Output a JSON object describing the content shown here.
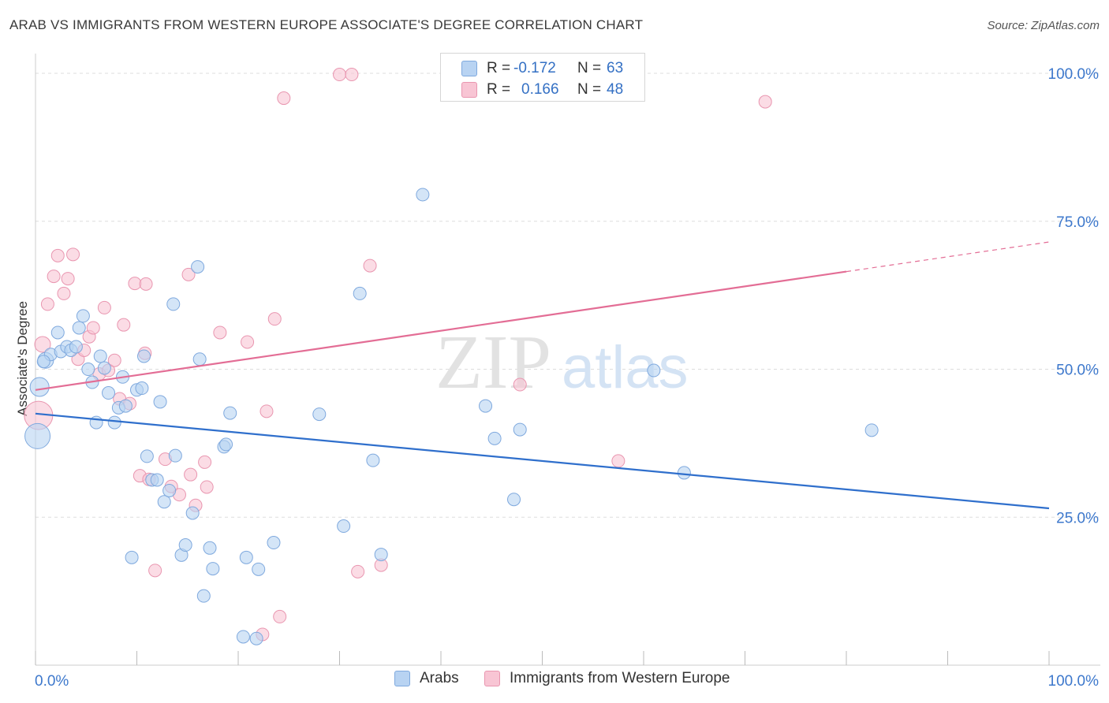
{
  "title": "ARAB VS IMMIGRANTS FROM WESTERN EUROPE ASSOCIATE'S DEGREE CORRELATION CHART",
  "source": "Source: ZipAtlas.com",
  "watermark": {
    "zip": "ZIP",
    "atlas": "atlas"
  },
  "stats": {
    "r_label": "R =",
    "n_label": "N =",
    "rows": [
      {
        "r": "-0.172",
        "n": "63"
      },
      {
        "r": "0.166",
        "n": "48"
      }
    ]
  },
  "legend": [
    "Arabs",
    "Immigrants from Western Europe"
  ],
  "colors": {
    "arabs_fill": "#b8d3f2",
    "arabs_stroke": "#7fa9de",
    "arabs_line": "#2f6fcc",
    "immig_fill": "#f8c5d4",
    "immig_stroke": "#e996b0",
    "immig_line": "#e36d95",
    "tick_label": "#3d78cc",
    "grid": "#dddddd"
  },
  "chart_data": {
    "type": "scatter",
    "title": "ARAB VS IMMIGRANTS FROM WESTERN EUROPE ASSOCIATE'S DEGREE CORRELATION CHART",
    "xlabel": "",
    "ylabel": "Associate's Degree",
    "xlim": [
      0,
      100
    ],
    "ylim": [
      0,
      102
    ],
    "x_tick_labels": [
      "0.0%",
      "100.0%"
    ],
    "y_ticks": [
      25,
      50,
      75,
      100
    ],
    "y_tick_labels": [
      "25.0%",
      "50.0%",
      "75.0%",
      "100.0%"
    ],
    "grid": true,
    "legend_position": "bottom",
    "series": [
      {
        "name": "Arabs",
        "r": -0.172,
        "n": 63,
        "trend": {
          "x": [
            0,
            100
          ],
          "y": [
            42.5,
            26.5
          ],
          "solid_to": 100
        },
        "points": [
          [
            0.2,
            38.7,
            16
          ],
          [
            0.4,
            47.0,
            12
          ],
          [
            1.0,
            51.5,
            10
          ],
          [
            1.5,
            52.5,
            8
          ],
          [
            2.2,
            56.2,
            8
          ],
          [
            2.5,
            53.0,
            8
          ],
          [
            3.1,
            53.8,
            8
          ],
          [
            3.5,
            53.2,
            8
          ],
          [
            4.0,
            53.8,
            8
          ],
          [
            4.3,
            57.0,
            8
          ],
          [
            4.7,
            59.0,
            8
          ],
          [
            5.2,
            50.0,
            8
          ],
          [
            5.6,
            47.8,
            8
          ],
          [
            6.0,
            41.0,
            8
          ],
          [
            6.4,
            52.2,
            8
          ],
          [
            6.8,
            50.2,
            8
          ],
          [
            7.2,
            46.0,
            8
          ],
          [
            7.8,
            41.0,
            8
          ],
          [
            8.2,
            43.5,
            8
          ],
          [
            8.6,
            48.7,
            8
          ],
          [
            8.9,
            43.8,
            8
          ],
          [
            9.5,
            18.2,
            8
          ],
          [
            10.0,
            46.5,
            8
          ],
          [
            10.5,
            46.8,
            8
          ],
          [
            10.7,
            52.2,
            8
          ],
          [
            11.0,
            35.3,
            8
          ],
          [
            11.5,
            31.3,
            8
          ],
          [
            12.0,
            31.3,
            8
          ],
          [
            12.3,
            44.5,
            8
          ],
          [
            12.7,
            27.6,
            8
          ],
          [
            13.2,
            29.5,
            8
          ],
          [
            13.6,
            61.0,
            8
          ],
          [
            13.8,
            35.4,
            8
          ],
          [
            14.4,
            18.6,
            8
          ],
          [
            14.8,
            20.3,
            8
          ],
          [
            15.5,
            25.7,
            8
          ],
          [
            16.0,
            67.3,
            8
          ],
          [
            16.2,
            51.7,
            8
          ],
          [
            16.6,
            11.7,
            8
          ],
          [
            17.2,
            19.8,
            8
          ],
          [
            17.5,
            16.3,
            8
          ],
          [
            18.6,
            36.9,
            8
          ],
          [
            18.8,
            37.3,
            8
          ],
          [
            19.2,
            42.6,
            8
          ],
          [
            20.5,
            4.8,
            8
          ],
          [
            20.8,
            18.2,
            8
          ],
          [
            21.8,
            4.5,
            8
          ],
          [
            22.0,
            16.2,
            8
          ],
          [
            23.5,
            20.7,
            8
          ],
          [
            28.0,
            42.4,
            8
          ],
          [
            30.4,
            23.5,
            8
          ],
          [
            32.0,
            62.8,
            8
          ],
          [
            33.3,
            34.6,
            8
          ],
          [
            34.1,
            18.7,
            8
          ],
          [
            38.2,
            79.5,
            8
          ],
          [
            44.4,
            43.8,
            8
          ],
          [
            45.3,
            38.3,
            8
          ],
          [
            47.2,
            28.0,
            8
          ],
          [
            47.8,
            39.8,
            8
          ],
          [
            61.0,
            49.8,
            8
          ],
          [
            64.0,
            32.5,
            8
          ],
          [
            82.5,
            39.7,
            8
          ],
          [
            0.8,
            51.3,
            8
          ]
        ]
      },
      {
        "name": "Immigrants from Western Europe",
        "r": 0.166,
        "n": 48,
        "trend": {
          "x": [
            0,
            100
          ],
          "y": [
            46.5,
            71.5
          ],
          "solid_to": 80
        },
        "points": [
          [
            0.3,
            42.2,
            18
          ],
          [
            0.7,
            54.2,
            10
          ],
          [
            1.2,
            61.0,
            8
          ],
          [
            1.8,
            65.7,
            8
          ],
          [
            2.2,
            69.2,
            8
          ],
          [
            2.8,
            62.8,
            8
          ],
          [
            3.2,
            65.3,
            8
          ],
          [
            3.7,
            69.4,
            8
          ],
          [
            4.2,
            51.7,
            8
          ],
          [
            4.8,
            53.2,
            8
          ],
          [
            5.3,
            55.5,
            8
          ],
          [
            5.7,
            57.0,
            8
          ],
          [
            6.3,
            49.2,
            8
          ],
          [
            6.8,
            60.4,
            8
          ],
          [
            7.2,
            49.8,
            8
          ],
          [
            7.8,
            51.5,
            8
          ],
          [
            8.3,
            45.0,
            8
          ],
          [
            8.7,
            57.5,
            8
          ],
          [
            9.3,
            44.2,
            8
          ],
          [
            9.8,
            64.5,
            8
          ],
          [
            10.3,
            32.0,
            8
          ],
          [
            10.8,
            52.7,
            8
          ],
          [
            11.2,
            31.4,
            8
          ],
          [
            11.8,
            16.0,
            8
          ],
          [
            12.8,
            34.8,
            8
          ],
          [
            13.4,
            30.2,
            8
          ],
          [
            14.2,
            28.8,
            8
          ],
          [
            15.1,
            66.0,
            8
          ],
          [
            15.3,
            32.2,
            8
          ],
          [
            15.8,
            27.0,
            8
          ],
          [
            16.7,
            34.3,
            8
          ],
          [
            16.9,
            30.1,
            8
          ],
          [
            18.2,
            56.2,
            8
          ],
          [
            20.9,
            54.6,
            8
          ],
          [
            22.4,
            5.2,
            8
          ],
          [
            22.8,
            42.9,
            8
          ],
          [
            23.6,
            58.5,
            8
          ],
          [
            24.1,
            8.2,
            8
          ],
          [
            24.5,
            95.8,
            8
          ],
          [
            30.0,
            99.8,
            8
          ],
          [
            31.2,
            99.8,
            8
          ],
          [
            31.8,
            15.8,
            8
          ],
          [
            33.0,
            67.5,
            8
          ],
          [
            34.1,
            16.9,
            8
          ],
          [
            47.8,
            47.4,
            8
          ],
          [
            57.5,
            34.5,
            8
          ],
          [
            72.0,
            95.2,
            8
          ],
          [
            10.9,
            64.4,
            8
          ]
        ]
      }
    ]
  }
}
